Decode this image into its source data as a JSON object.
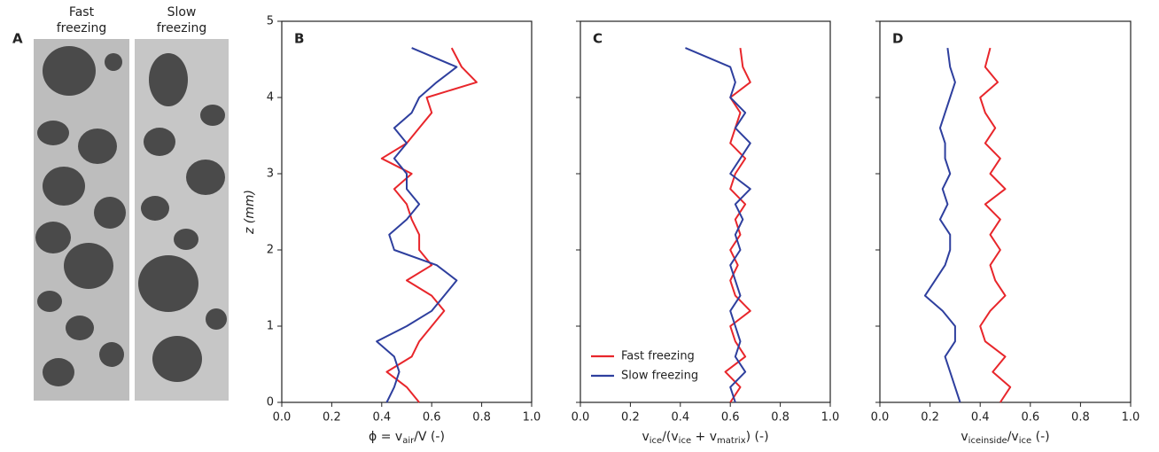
{
  "panel_a": {
    "label": "A",
    "captions": [
      "Fast\nfreezing",
      "Slow\nfreezing"
    ]
  },
  "chart_data": [
    {
      "type": "line",
      "panel_label": "B",
      "x_label": [
        {
          "text": "ϕ = v"
        },
        {
          "text": "air",
          "sub": true
        },
        {
          "text": "/V (-)"
        }
      ],
      "y_label": "z (mm)",
      "show_ytick_labels": true,
      "xlim": [
        0,
        1
      ],
      "ylim": [
        0,
        5
      ],
      "xticks": [
        {
          "value": 0,
          "label": "0.0"
        },
        0.2,
        0.4,
        0.6,
        0.8,
        {
          "value": 1,
          "label": "1.0"
        }
      ],
      "yticks": [
        0,
        1,
        2,
        3,
        4,
        5
      ],
      "z": [
        0,
        0.2,
        0.4,
        0.6,
        0.8,
        1.0,
        1.2,
        1.4,
        1.6,
        1.8,
        2.0,
        2.2,
        2.4,
        2.6,
        2.8,
        3.0,
        3.2,
        3.4,
        3.6,
        3.8,
        4.0,
        4.2,
        4.4,
        4.65
      ],
      "series": [
        {
          "name": "Fast freezing",
          "color": "#e8262b",
          "values": [
            0.55,
            0.5,
            0.42,
            0.52,
            0.55,
            0.6,
            0.65,
            0.6,
            0.5,
            0.6,
            0.55,
            0.55,
            0.52,
            0.5,
            0.45,
            0.52,
            0.4,
            0.5,
            0.55,
            0.6,
            0.58,
            0.78,
            0.72,
            0.68
          ]
        },
        {
          "name": "Slow freezing",
          "color": "#2e3f9e",
          "values": [
            0.42,
            0.45,
            0.47,
            0.45,
            0.38,
            0.5,
            0.6,
            0.65,
            0.7,
            0.62,
            0.45,
            0.43,
            0.5,
            0.55,
            0.5,
            0.5,
            0.45,
            0.5,
            0.45,
            0.52,
            0.55,
            0.62,
            0.7,
            0.52
          ]
        }
      ]
    },
    {
      "type": "line",
      "panel_label": "C",
      "x_label": [
        {
          "text": "v"
        },
        {
          "text": "ice",
          "sub": true
        },
        {
          "text": "/(v"
        },
        {
          "text": "ice",
          "sub": true
        },
        {
          "text": " + v"
        },
        {
          "text": "matrix",
          "sub": true
        },
        {
          "text": ") (-)"
        }
      ],
      "show_ytick_labels": false,
      "legend": "lower left",
      "xlim": [
        0,
        1
      ],
      "ylim": [
        0,
        5
      ],
      "xticks": [
        {
          "value": 0,
          "label": "0.0"
        },
        0.2,
        0.4,
        0.6,
        0.8,
        {
          "value": 1,
          "label": "1.0"
        }
      ],
      "yticks": [
        0,
        1,
        2,
        3,
        4,
        5
      ],
      "z": [
        0,
        0.2,
        0.4,
        0.6,
        0.8,
        1.0,
        1.2,
        1.4,
        1.6,
        1.8,
        2.0,
        2.2,
        2.4,
        2.6,
        2.8,
        3.0,
        3.2,
        3.4,
        3.6,
        3.8,
        4.0,
        4.2,
        4.4,
        4.65
      ],
      "series": [
        {
          "name": "Fast freezing",
          "color": "#e8262b",
          "values": [
            0.6,
            0.64,
            0.58,
            0.66,
            0.62,
            0.6,
            0.68,
            0.62,
            0.6,
            0.63,
            0.6,
            0.64,
            0.62,
            0.66,
            0.6,
            0.62,
            0.66,
            0.6,
            0.62,
            0.64,
            0.6,
            0.68,
            0.65,
            0.64
          ]
        },
        {
          "name": "Slow freezing",
          "color": "#2e3f9e",
          "values": [
            0.62,
            0.6,
            0.66,
            0.62,
            0.64,
            0.62,
            0.6,
            0.64,
            0.62,
            0.6,
            0.64,
            0.62,
            0.65,
            0.62,
            0.68,
            0.6,
            0.64,
            0.68,
            0.62,
            0.66,
            0.6,
            0.62,
            0.6,
            0.42
          ]
        }
      ]
    },
    {
      "type": "line",
      "panel_label": "D",
      "x_label": [
        {
          "text": "v"
        },
        {
          "text": "iceinside",
          "sub": true
        },
        {
          "text": "/v"
        },
        {
          "text": "ice",
          "sub": true
        },
        {
          "text": " (-)"
        }
      ],
      "show_ytick_labels": false,
      "xlim": [
        0,
        1
      ],
      "ylim": [
        0,
        5
      ],
      "xticks": [
        {
          "value": 0,
          "label": "0.0"
        },
        0.2,
        0.4,
        0.6,
        0.8,
        {
          "value": 1,
          "label": "1.0"
        }
      ],
      "yticks": [
        0,
        1,
        2,
        3,
        4,
        5
      ],
      "z": [
        0,
        0.2,
        0.4,
        0.6,
        0.8,
        1.0,
        1.2,
        1.4,
        1.6,
        1.8,
        2.0,
        2.2,
        2.4,
        2.6,
        2.8,
        3.0,
        3.2,
        3.4,
        3.6,
        3.8,
        4.0,
        4.2,
        4.4,
        4.65
      ],
      "series": [
        {
          "name": "Fast freezing",
          "color": "#e8262b",
          "values": [
            0.48,
            0.52,
            0.45,
            0.5,
            0.42,
            0.4,
            0.44,
            0.5,
            0.46,
            0.44,
            0.48,
            0.44,
            0.48,
            0.42,
            0.5,
            0.44,
            0.48,
            0.42,
            0.46,
            0.42,
            0.4,
            0.47,
            0.42,
            0.44
          ]
        },
        {
          "name": "Slow freezing",
          "color": "#2e3f9e",
          "values": [
            0.32,
            0.3,
            0.28,
            0.26,
            0.3,
            0.3,
            0.25,
            0.18,
            0.22,
            0.26,
            0.28,
            0.28,
            0.24,
            0.27,
            0.25,
            0.28,
            0.26,
            0.26,
            0.24,
            0.26,
            0.28,
            0.3,
            0.28,
            0.27
          ]
        }
      ]
    }
  ]
}
